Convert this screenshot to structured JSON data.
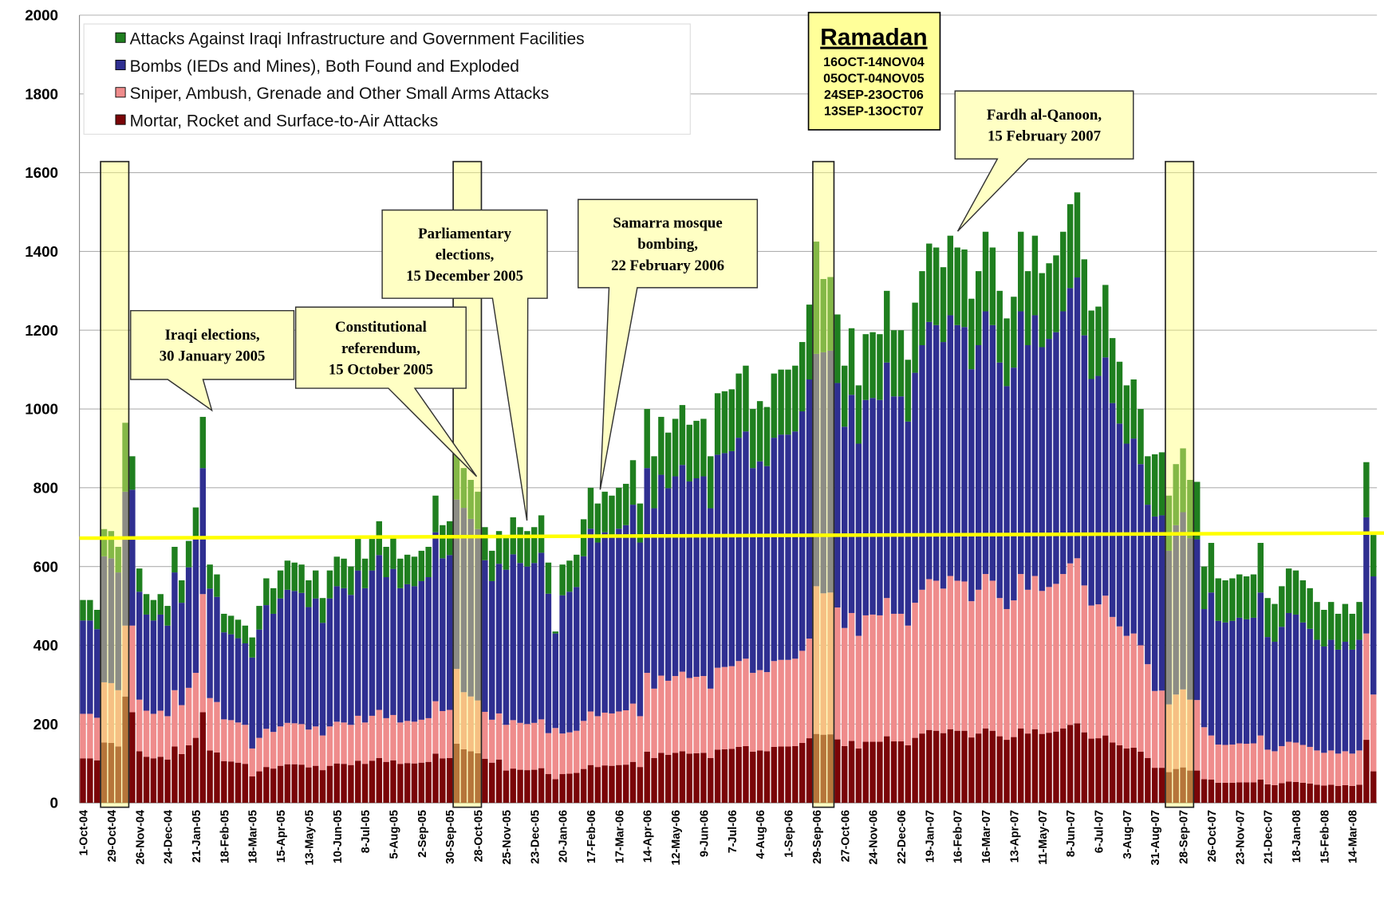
{
  "chart_data": {
    "type": "stacked_bar",
    "categories": [
      "1-Oct-04",
      null,
      null,
      null,
      "29-Oct-04",
      null,
      null,
      null,
      "26-Nov-04",
      null,
      null,
      null,
      "24-Dec-04",
      null,
      null,
      null,
      "21-Jan-05",
      null,
      null,
      null,
      "18-Feb-05",
      null,
      null,
      null,
      "18-Mar-05",
      null,
      null,
      null,
      "15-Apr-05",
      null,
      null,
      null,
      "13-May-05",
      null,
      null,
      null,
      "10-Jun-05",
      null,
      null,
      null,
      "8-Jul-05",
      null,
      null,
      null,
      "5-Aug-05",
      null,
      null,
      null,
      "2-Sep-05",
      null,
      null,
      null,
      "30-Sep-05",
      null,
      null,
      null,
      "28-Oct-05",
      null,
      null,
      null,
      "25-Nov-05",
      null,
      null,
      null,
      "23-Dec-05",
      null,
      null,
      null,
      "20-Jan-06",
      null,
      null,
      null,
      "17-Feb-06",
      null,
      null,
      null,
      "17-Mar-06",
      null,
      null,
      null,
      "14-Apr-06",
      null,
      null,
      null,
      "12-May-06",
      null,
      null,
      null,
      "9-Jun-06",
      null,
      null,
      null,
      "7-Jul-06",
      null,
      null,
      null,
      "4-Aug-06",
      null,
      null,
      null,
      "1-Sep-06",
      null,
      null,
      null,
      "29-Sep-06",
      null,
      null,
      null,
      "27-Oct-06",
      null,
      null,
      null,
      "24-Nov-06",
      null,
      null,
      null,
      "22-Dec-06",
      null,
      null,
      null,
      "19-Jan-07",
      null,
      null,
      null,
      "16-Feb-07",
      null,
      null,
      null,
      "16-Mar-07",
      null,
      null,
      null,
      "13-Apr-07",
      null,
      null,
      null,
      "11-May-07",
      null,
      null,
      null,
      "8-Jun-07",
      null,
      null,
      null,
      "6-Jul-07",
      null,
      null,
      null,
      "3-Aug-07",
      null,
      null,
      null,
      "31-Aug-07",
      null,
      null,
      null,
      "28-Sep-07",
      null,
      null,
      null,
      "26-Oct-07",
      null,
      null,
      null,
      "23-Nov-07",
      null,
      null,
      null,
      "21-Dec-07",
      null,
      null,
      null,
      "18-Jan-08",
      null,
      null,
      null,
      "15-Feb-08",
      null,
      null,
      null,
      "14-Mar-08",
      null,
      null,
      null
    ],
    "series": [
      {
        "name": "Mortar, Rocket and Surface-to-Air Attacks",
        "color": "#7a0508",
        "values": [
          113,
          113,
          108,
          153,
          152,
          143,
          270,
          230,
          131,
          117,
          113,
          117,
          110,
          143,
          124,
          146,
          165,
          230,
          133,
          128,
          106,
          105,
          102,
          99,
          67,
          80,
          91,
          87,
          94,
          98,
          98,
          97,
          90,
          94,
          83,
          94,
          100,
          99,
          96,
          107,
          99,
          107,
          114,
          104,
          108,
          99,
          101,
          100,
          102,
          104,
          125,
          113,
          114,
          150,
          136,
          131,
          126,
          112,
          102,
          110,
          82,
          87,
          84,
          83,
          84,
          88,
          73,
          60,
          73,
          74,
          76,
          86,
          96,
          91,
          95,
          94,
          96,
          97,
          104,
          91,
          130,
          114,
          127,
          122,
          127,
          131,
          125,
          126,
          127,
          114,
          135,
          136,
          137,
          142,
          144,
          130,
          133,
          131,
          142,
          143,
          143,
          144,
          152,
          164,
          175,
          173,
          174,
          161,
          144,
          157,
          138,
          155,
          155,
          155,
          169,
          156,
          156,
          146,
          165,
          176,
          185,
          183,
          177,
          187,
          183,
          183,
          166,
          176,
          189,
          183,
          169,
          160,
          167,
          189,
          176,
          187,
          175,
          178,
          181,
          189,
          198,
          202,
          179,
          163,
          164,
          171,
          153,
          146,
          138,
          140,
          130,
          114,
          89,
          89,
          78,
          86,
          90,
          82,
          82,
          60,
          59,
          51,
          51,
          51,
          52,
          52,
          52,
          59,
          47,
          45,
          50,
          54,
          53,
          51,
          49,
          46,
          44,
          46,
          43,
          45,
          43,
          46,
          160,
          80
        ]
      },
      {
        "name": "Sniper, Ambush, Grenade and Other Small Arms Attacks",
        "color": "#ef8c8c",
        "values": [
          113,
          113,
          108,
          153,
          152,
          143,
          180,
          220,
          131,
          117,
          113,
          117,
          110,
          143,
          124,
          146,
          165,
          300,
          133,
          128,
          106,
          105,
          102,
          99,
          71,
          85,
          97,
          93,
          100,
          105,
          104,
          103,
          96,
          100,
          88,
          100,
          106,
          105,
          102,
          114,
          105,
          114,
          122,
          111,
          115,
          105,
          107,
          106,
          109,
          111,
          133,
          120,
          122,
          190,
          145,
          139,
          134,
          119,
          109,
          117,
          116,
          123,
          119,
          117,
          119,
          124,
          104,
          130,
          103,
          105,
          107,
          122,
          136,
          129,
          134,
          133,
          136,
          138,
          148,
          129,
          200,
          176,
          196,
          188,
          195,
          202,
          192,
          194,
          195,
          176,
          208,
          209,
          210,
          218,
          222,
          200,
          204,
          201,
          218,
          220,
          220,
          222,
          234,
          253,
          375,
          359,
          360,
          335,
          300,
          325,
          286,
          321,
          323,
          321,
          351,
          324,
          324,
          304,
          343,
          365,
          383,
          381,
          367,
          389,
          381,
          379,
          346,
          365,
          392,
          381,
          351,
          332,
          347,
          392,
          365,
          389,
          363,
          370,
          375,
          392,
          410,
          419,
          373,
          338,
          340,
          355,
          319,
          302,
          286,
          290,
          270,
          238,
          195,
          196,
          172,
          189,
          198,
          180,
          179,
          132,
          112,
          97,
          96,
          97,
          99,
          98,
          99,
          112,
          88,
          86,
          94,
          101,
          100,
          96,
          93,
          87,
          83,
          87,
          82,
          86,
          82,
          87,
          270,
          195
        ]
      },
      {
        "name": "Bombs (IEDs and Mines),  Both Found and Exploded",
        "color": "#2f2f91",
        "values": [
          237,
          237,
          225,
          320,
          317,
          299,
          340,
          345,
          274,
          244,
          237,
          244,
          230,
          299,
          260,
          306,
          345,
          320,
          278,
          267,
          221,
          218,
          214,
          207,
          231,
          275,
          314,
          300,
          325,
          338,
          336,
          333,
          311,
          325,
          286,
          325,
          344,
          341,
          330,
          369,
          341,
          369,
          393,
          358,
          371,
          341,
          347,
          344,
          352,
          358,
          429,
          388,
          393,
          430,
          468,
          451,
          435,
          385,
          352,
          380,
          394,
          421,
          406,
          400,
          406,
          423,
          354,
          240,
          351,
          357,
          365,
          418,
          464,
          441,
          458,
          452,
          464,
          470,
          505,
          441,
          520,
          458,
          510,
          489,
          507,
          525,
          499,
          504,
          507,
          458,
          541,
          543,
          546,
          567,
          577,
          520,
          530,
          523,
          567,
          572,
          572,
          577,
          608,
          658,
          590,
          612,
          614,
          570,
          511,
          554,
          488,
          547,
          550,
          547,
          598,
          552,
          552,
          518,
          584,
          621,
          653,
          649,
          626,
          662,
          649,
          646,
          589,
          621,
          667,
          649,
          598,
          566,
          591,
          667,
          621,
          662,
          619,
          630,
          639,
          667,
          699,
          713,
          635,
          575,
          580,
          605,
          543,
          515,
          488,
          495,
          460,
          405,
          443,
          445,
          390,
          430,
          450,
          410,
          408,
          300,
          363,
          314,
          311,
          314,
          319,
          316,
          319,
          363,
          286,
          278,
          303,
          327,
          325,
          311,
          300,
          281,
          270,
          281,
          264,
          278,
          264,
          281,
          295,
          300
        ]
      },
      {
        "name": "Attacks Against Iraqi Infrastructure and Government Facilities",
        "color": "#1f7f1f",
        "values": [
          52,
          52,
          49,
          69,
          69,
          65,
          175,
          85,
          59,
          52,
          52,
          52,
          50,
          65,
          57,
          67,
          75,
          130,
          61,
          57,
          47,
          47,
          47,
          45,
          51,
          60,
          68,
          65,
          71,
          74,
          72,
          72,
          68,
          71,
          63,
          71,
          75,
          75,
          72,
          80,
          75,
          80,
          86,
          77,
          81,
          75,
          75,
          75,
          77,
          77,
          93,
          84,
          86,
          120,
          101,
          99,
          95,
          84,
          77,
          83,
          88,
          94,
          91,
          90,
          91,
          95,
          79,
          5,
          78,
          79,
          82,
          94,
          104,
          99,
          103,
          101,
          104,
          105,
          113,
          99,
          150,
          132,
          147,
          141,
          146,
          152,
          144,
          146,
          146,
          132,
          156,
          157,
          157,
          163,
          167,
          150,
          153,
          150,
          163,
          165,
          165,
          167,
          176,
          190,
          285,
          186,
          187,
          174,
          155,
          169,
          148,
          167,
          167,
          167,
          182,
          168,
          168,
          157,
          178,
          188,
          199,
          197,
          190,
          202,
          197,
          197,
          179,
          188,
          202,
          197,
          182,
          172,
          180,
          202,
          188,
          202,
          188,
          192,
          195,
          202,
          213,
          216,
          193,
          174,
          176,
          184,
          165,
          157,
          148,
          150,
          140,
          123,
          158,
          160,
          140,
          155,
          162,
          148,
          146,
          108,
          126,
          108,
          107,
          108,
          110,
          109,
          110,
          126,
          99,
          96,
          103,
          113,
          112,
          107,
          103,
          96,
          93,
          96,
          91,
          96,
          91,
          96,
          140,
          105
        ]
      }
    ],
    "ylim": [
      0,
      2000
    ],
    "yticks": [
      0,
      200,
      400,
      600,
      800,
      1000,
      1200,
      1400,
      1600,
      1800,
      2000
    ],
    "grid": true,
    "legend": "upper left",
    "reference_line": [
      672,
      685
    ],
    "ramadan_weeks": [
      [
        3,
        6
      ],
      [
        53,
        56
      ],
      [
        104,
        106
      ],
      [
        154,
        157
      ]
    ],
    "ramadan": {
      "title": "Ramadan",
      "lines": [
        "16OCT-14NOV04",
        "05OCT-04NOV05",
        "24SEP-23OCT06",
        "13SEP-13OCT07"
      ]
    },
    "annotations": [
      {
        "lines": [
          "Iraqi elections,",
          "30 January 2005"
        ]
      },
      {
        "lines": [
          "Constitutional",
          "referendum,",
          "15 October 2005"
        ]
      },
      {
        "lines": [
          "Parliamentary",
          "elections,",
          "15 December 2005"
        ]
      },
      {
        "lines": [
          "Samarra mosque",
          "bombing,",
          "22 February 2006"
        ]
      },
      {
        "lines": [
          "Fardh al-Qanoon,",
          "15 February 2007"
        ]
      }
    ]
  }
}
